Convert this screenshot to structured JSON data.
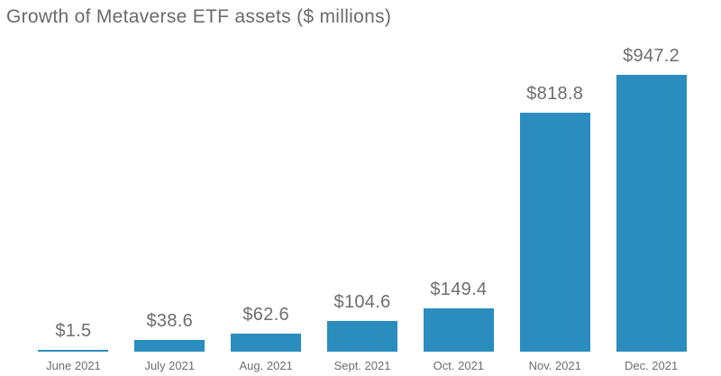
{
  "title": "Growth of Metaverse ETF assets ($ millions)",
  "colors": {
    "background": "#FFFFFF",
    "bar": "#2B8CBE",
    "title_text": "#6A6A6A",
    "label_text": "#6E6E6E"
  },
  "chart_data": {
    "type": "bar",
    "title": "Growth of Metaverse ETF assets ($ millions)",
    "categories": [
      "June 2021",
      "July 2021",
      "Aug. 2021",
      "Sept. 2021",
      "Oct. 2021",
      "Nov. 2021",
      "Dec. 2021"
    ],
    "values": [
      1.5,
      38.6,
      62.6,
      104.6,
      149.4,
      818.8,
      947.2
    ],
    "value_labels": [
      "$1.5",
      "$38.6",
      "$62.6",
      "$104.6",
      "$149.4",
      "$818.8",
      "$947.2"
    ],
    "xlabel": "",
    "ylabel": "",
    "ylim": [
      0,
      947.2
    ],
    "grid": false,
    "legend": "none",
    "bar_color": "#2B8CBE",
    "data_labels": "above-bars"
  }
}
